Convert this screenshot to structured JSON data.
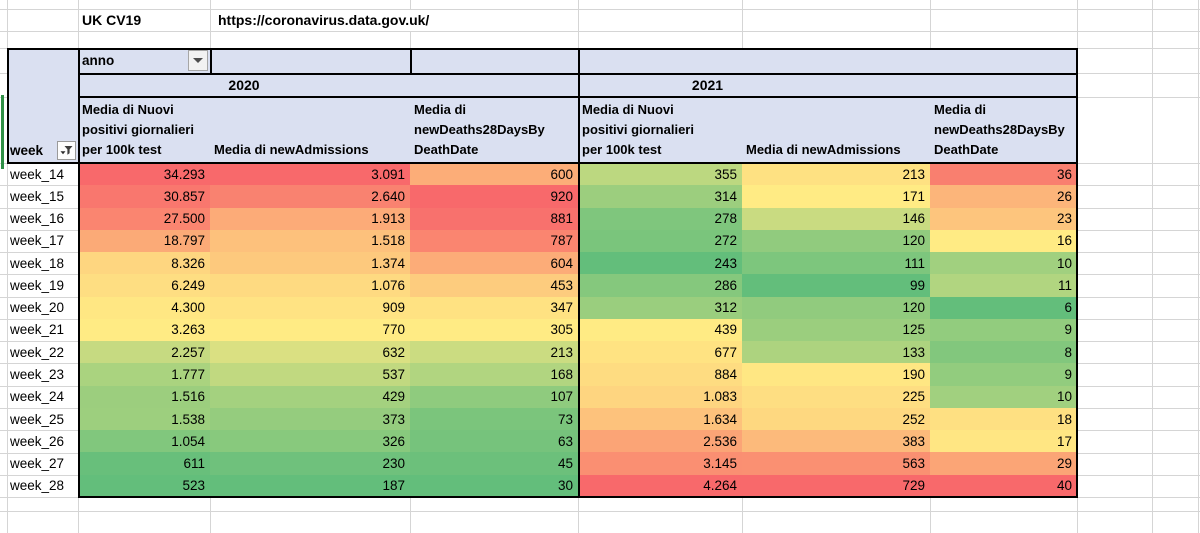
{
  "header_bar": {
    "title": "UK CV19",
    "url": "https://coronavirus.data.gov.uk/"
  },
  "pivot": {
    "filter_label": "anno",
    "row_field": "week",
    "years": [
      "2020",
      "2021"
    ],
    "measure_headers": [
      "Media di Nuovi\npositivi giornalieri\nper 100k test",
      "Media di newAdmissions",
      "Media di\nnewDeaths28DaysBy\nDeathDate"
    ],
    "rows": [
      {
        "week": "week_14",
        "values": [
          "34.293",
          "3.091",
          "600",
          "355",
          "213",
          "36"
        ]
      },
      {
        "week": "week_15",
        "values": [
          "30.857",
          "2.640",
          "920",
          "314",
          "171",
          "26"
        ]
      },
      {
        "week": "week_16",
        "values": [
          "27.500",
          "1.913",
          "881",
          "278",
          "146",
          "23"
        ]
      },
      {
        "week": "week_17",
        "values": [
          "18.797",
          "1.518",
          "787",
          "272",
          "120",
          "16"
        ]
      },
      {
        "week": "week_18",
        "values": [
          "8.326",
          "1.374",
          "604",
          "243",
          "111",
          "10"
        ]
      },
      {
        "week": "week_19",
        "values": [
          "6.249",
          "1.076",
          "453",
          "286",
          "99",
          "11"
        ]
      },
      {
        "week": "week_20",
        "values": [
          "4.300",
          "909",
          "347",
          "312",
          "120",
          "6"
        ]
      },
      {
        "week": "week_21",
        "values": [
          "3.263",
          "770",
          "305",
          "439",
          "125",
          "9"
        ]
      },
      {
        "week": "week_22",
        "values": [
          "2.257",
          "632",
          "213",
          "677",
          "133",
          "8"
        ]
      },
      {
        "week": "week_23",
        "values": [
          "1.777",
          "537",
          "168",
          "884",
          "190",
          "9"
        ]
      },
      {
        "week": "week_24",
        "values": [
          "1.516",
          "429",
          "107",
          "1.083",
          "225",
          "10"
        ]
      },
      {
        "week": "week_25",
        "values": [
          "1.538",
          "373",
          "73",
          "1.634",
          "252",
          "18"
        ]
      },
      {
        "week": "week_26",
        "values": [
          "1.054",
          "326",
          "63",
          "2.536",
          "383",
          "17"
        ]
      },
      {
        "week": "week_27",
        "values": [
          "611",
          "230",
          "45",
          "3.145",
          "563",
          "29"
        ]
      },
      {
        "week": "week_28",
        "values": [
          "523",
          "187",
          "30",
          "4.264",
          "729",
          "40"
        ]
      }
    ]
  },
  "colors": {
    "header_fill": "#dae0f1",
    "gridline": "#d5d5d5",
    "table_border": "#000000",
    "scale_min_green": "#63BE7B",
    "scale_mid_yellow": "#FFEB84",
    "scale_max_red": "#F8696B",
    "accent_line_green": "#2f8f46"
  }
}
